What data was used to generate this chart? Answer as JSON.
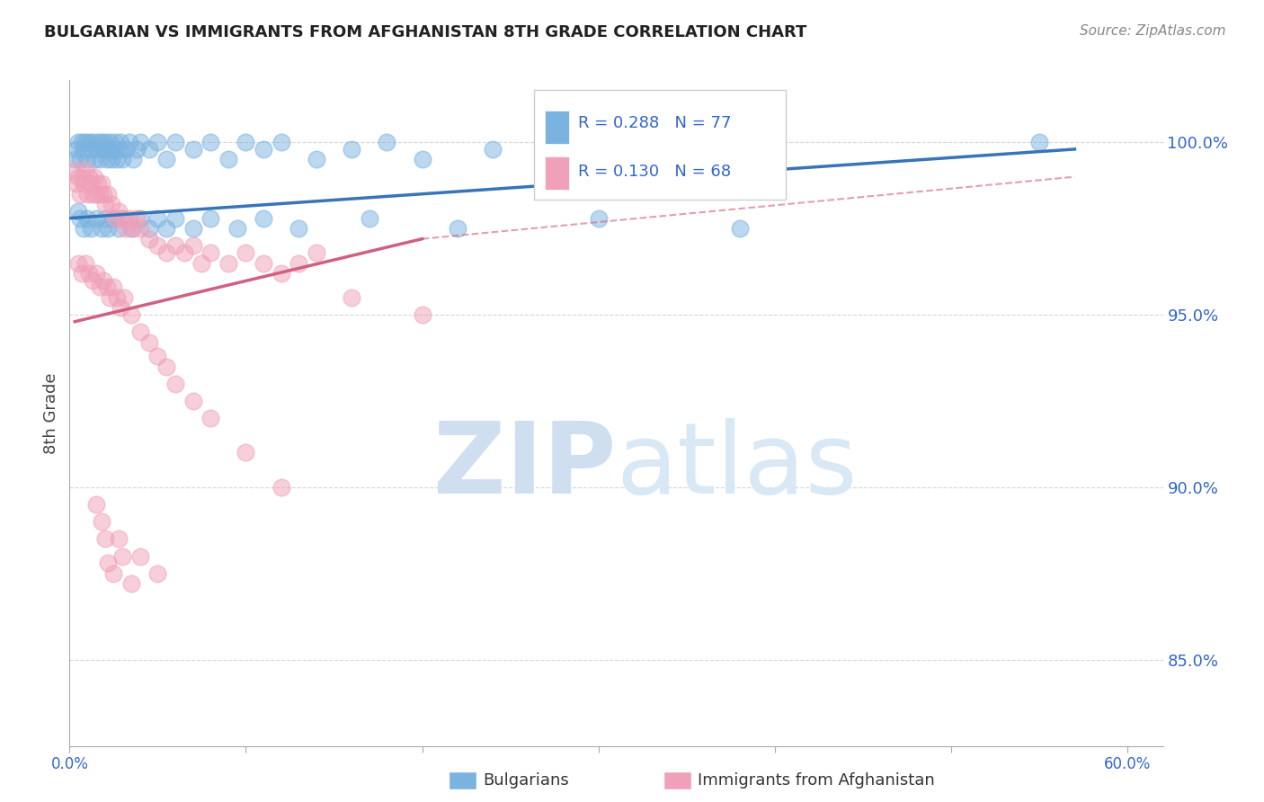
{
  "title": "BULGARIAN VS IMMIGRANTS FROM AFGHANISTAN 8TH GRADE CORRELATION CHART",
  "source": "Source: ZipAtlas.com",
  "ylabel": "8th Grade",
  "xlim": [
    0.0,
    62.0
  ],
  "ylim": [
    82.5,
    101.8
  ],
  "blue_R": 0.288,
  "blue_N": 77,
  "pink_R": 0.13,
  "pink_N": 68,
  "blue_color": "#7BB3E0",
  "pink_color": "#F0A0B8",
  "blue_line_color": "#3874B8",
  "pink_line_color": "#D06080",
  "background_color": "#FFFFFF",
  "grid_color": "#CCCCCC",
  "watermark_color": "#D0DFF0",
  "legend_text_color": "#3366CC",
  "yticks": [
    85.0,
    90.0,
    95.0,
    100.0
  ],
  "ylabels": [
    "85.0%",
    "90.0%",
    "95.0%",
    "100.0%"
  ],
  "blue_line_x0": 0.0,
  "blue_line_y0": 97.8,
  "blue_line_x1": 57.0,
  "blue_line_y1": 99.8,
  "pink_solid_x0": 0.3,
  "pink_solid_y0": 94.8,
  "pink_solid_x1": 20.0,
  "pink_solid_y1": 97.2,
  "pink_dash_x0": 20.0,
  "pink_dash_y0": 97.2,
  "pink_dash_x1": 57.0,
  "pink_dash_y1": 99.0,
  "blue_x": [
    0.3,
    0.4,
    0.5,
    0.6,
    0.7,
    0.8,
    0.9,
    1.0,
    1.1,
    1.2,
    1.3,
    1.4,
    1.5,
    1.6,
    1.7,
    1.8,
    1.9,
    2.0,
    2.1,
    2.2,
    2.3,
    2.4,
    2.5,
    2.6,
    2.7,
    2.8,
    2.9,
    3.0,
    3.2,
    3.4,
    3.6,
    3.8,
    4.0,
    4.5,
    5.0,
    5.5,
    6.0,
    7.0,
    8.0,
    9.0,
    10.0,
    11.0,
    12.0,
    14.0,
    16.0,
    18.0,
    20.0,
    24.0,
    28.0,
    55.0,
    0.5,
    0.6,
    0.8,
    1.0,
    1.2,
    1.5,
    1.8,
    2.0,
    2.2,
    2.5,
    2.8,
    3.0,
    3.5,
    4.0,
    4.5,
    5.0,
    5.5,
    6.0,
    7.0,
    8.0,
    9.5,
    11.0,
    13.0,
    17.0,
    22.0,
    30.0,
    38.0
  ],
  "blue_y": [
    99.5,
    99.8,
    100.0,
    99.5,
    100.0,
    99.8,
    100.0,
    99.5,
    100.0,
    99.8,
    100.0,
    99.5,
    99.8,
    100.0,
    99.5,
    100.0,
    99.8,
    100.0,
    99.5,
    99.8,
    100.0,
    99.5,
    99.8,
    100.0,
    99.5,
    99.8,
    100.0,
    99.5,
    99.8,
    100.0,
    99.5,
    99.8,
    100.0,
    99.8,
    100.0,
    99.5,
    100.0,
    99.8,
    100.0,
    99.5,
    100.0,
    99.8,
    100.0,
    99.5,
    99.8,
    100.0,
    99.5,
    99.8,
    100.0,
    100.0,
    98.0,
    97.8,
    97.5,
    97.8,
    97.5,
    97.8,
    97.5,
    97.8,
    97.5,
    97.8,
    97.5,
    97.8,
    97.5,
    97.8,
    97.5,
    97.8,
    97.5,
    97.8,
    97.5,
    97.8,
    97.5,
    97.8,
    97.5,
    97.8,
    97.5,
    97.8,
    97.5
  ],
  "pink_x": [
    0.3,
    0.4,
    0.5,
    0.6,
    0.7,
    0.8,
    0.9,
    1.0,
    1.1,
    1.2,
    1.3,
    1.4,
    1.5,
    1.6,
    1.7,
    1.8,
    1.9,
    2.0,
    2.2,
    2.4,
    2.6,
    2.8,
    3.0,
    3.2,
    3.4,
    3.6,
    3.8,
    4.0,
    4.5,
    5.0,
    5.5,
    6.0,
    6.5,
    7.0,
    7.5,
    8.0,
    9.0,
    10.0,
    11.0,
    12.0,
    13.0,
    14.0,
    16.0,
    20.0,
    0.5,
    0.7,
    0.9,
    1.1,
    1.3,
    1.5,
    1.7,
    1.9,
    2.1,
    2.3,
    2.5,
    2.7,
    2.9,
    3.1,
    3.5,
    4.0,
    4.5,
    5.0,
    5.5,
    6.0,
    7.0,
    8.0,
    10.0,
    12.0
  ],
  "pink_y": [
    99.2,
    98.8,
    99.0,
    98.5,
    99.0,
    98.8,
    99.2,
    98.5,
    99.0,
    98.8,
    98.5,
    99.0,
    98.5,
    98.8,
    98.5,
    98.8,
    98.5,
    98.2,
    98.5,
    98.2,
    97.8,
    98.0,
    97.8,
    97.5,
    97.8,
    97.5,
    97.8,
    97.5,
    97.2,
    97.0,
    96.8,
    97.0,
    96.8,
    97.0,
    96.5,
    96.8,
    96.5,
    96.8,
    96.5,
    96.2,
    96.5,
    96.8,
    95.5,
    95.0,
    96.5,
    96.2,
    96.5,
    96.2,
    96.0,
    96.2,
    95.8,
    96.0,
    95.8,
    95.5,
    95.8,
    95.5,
    95.2,
    95.5,
    95.0,
    94.5,
    94.2,
    93.8,
    93.5,
    93.0,
    92.5,
    92.0,
    91.0,
    90.0
  ],
  "pink_low_x": [
    1.5,
    2.0,
    2.5,
    3.0,
    1.8,
    2.2,
    2.8,
    3.5,
    4.0,
    5.0
  ],
  "pink_low_y": [
    89.5,
    88.5,
    87.5,
    88.0,
    89.0,
    87.8,
    88.5,
    87.2,
    88.0,
    87.5
  ]
}
